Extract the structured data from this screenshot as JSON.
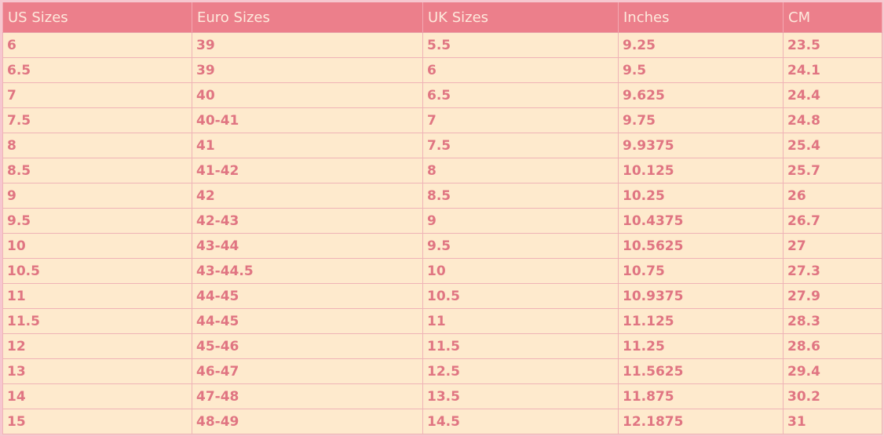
{
  "table": {
    "headers": [
      "US Sizes",
      "Euro Sizes",
      "UK Sizes",
      "Inches",
      "CM"
    ],
    "rows": [
      [
        "6",
        "39",
        "5.5",
        "9.25",
        "23.5"
      ],
      [
        "6.5",
        "39",
        "6",
        "9.5",
        "24.1"
      ],
      [
        "7",
        "40",
        "6.5",
        "9.625",
        "24.4"
      ],
      [
        "7.5",
        "40-41",
        "7",
        "9.75",
        "24.8"
      ],
      [
        "8",
        "41",
        "7.5",
        "9.9375",
        "25.4"
      ],
      [
        "8.5",
        "41-42",
        "8",
        "10.125",
        "25.7"
      ],
      [
        "9",
        "42",
        "8.5",
        "10.25",
        "26"
      ],
      [
        "9.5",
        "42-43",
        "9",
        "10.4375",
        "26.7"
      ],
      [
        "10",
        "43-44",
        "9.5",
        "10.5625",
        "27"
      ],
      [
        "10.5",
        "43-44.5",
        "10",
        "10.75",
        "27.3"
      ],
      [
        "11",
        "44-45",
        "10.5",
        "10.9375",
        "27.9"
      ],
      [
        "11.5",
        "44-45",
        "11",
        "11.125",
        "28.3"
      ],
      [
        "12",
        "45-46",
        "11.5",
        "11.25",
        "28.6"
      ],
      [
        "13",
        "46-47",
        "12.5",
        "11.5625",
        "29.4"
      ],
      [
        "14",
        "47-48",
        "13.5",
        "11.875",
        "30.2"
      ],
      [
        "15",
        "48-49",
        "14.5",
        "12.1875",
        "31"
      ]
    ]
  },
  "colors": {
    "header_bg": "#ec7f8b",
    "header_text": "#fde9dc",
    "cell_bg": "#feeacd",
    "cell_text": "#e07582",
    "border": "#efb3b6"
  }
}
